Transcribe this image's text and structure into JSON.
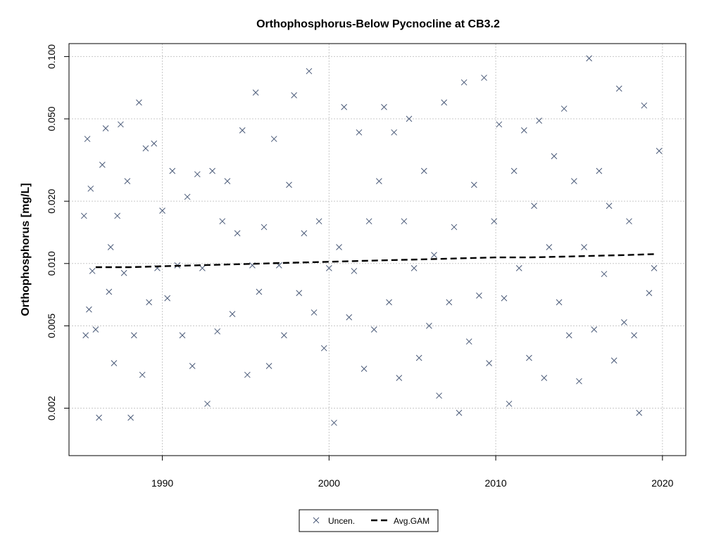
{
  "chart_data": {
    "type": "scatter",
    "title": "Orthophosphorus-Below Pycnocline at CB3.2",
    "xlabel": "",
    "ylabel": "Orthophosphorus [mg/L]",
    "xlim": [
      1984.4,
      2021.4
    ],
    "ylim": [
      0.00118,
      0.1155
    ],
    "y_scale": "log",
    "grid": true,
    "legend_position": "bottom-center",
    "x_ticks": [
      1990,
      2000,
      2010,
      2020
    ],
    "y_ticks": [
      0.002,
      0.005,
      0.01,
      0.02,
      0.05,
      0.1
    ],
    "x_tick_labels": [
      "1990",
      "2000",
      "2010",
      "2020"
    ],
    "y_tick_labels": [
      "0.002",
      "0.005",
      "0.010",
      "0.020",
      "0.050",
      "0.100"
    ],
    "colors": {
      "points": "#4a5a78",
      "gam": "#000000",
      "grid": "#c8c8c8"
    },
    "series": [
      {
        "name": "Uncen.",
        "marker": "x",
        "x": [
          1985.3,
          1985.4,
          1985.5,
          1985.6,
          1985.7,
          1985.8,
          1986.0,
          1986.2,
          1986.4,
          1986.6,
          1986.8,
          1986.9,
          1987.1,
          1987.3,
          1987.5,
          1987.7,
          1987.9,
          1988.1,
          1988.3,
          1988.6,
          1988.8,
          1989.0,
          1989.2,
          1989.5,
          1989.7,
          1990.0,
          1990.3,
          1990.6,
          1990.9,
          1991.2,
          1991.5,
          1991.8,
          1992.1,
          1992.4,
          1992.7,
          1993.0,
          1993.3,
          1993.6,
          1993.9,
          1994.2,
          1994.5,
          1994.8,
          1995.1,
          1995.4,
          1995.6,
          1995.8,
          1996.1,
          1996.4,
          1996.7,
          1997.0,
          1997.3,
          1997.6,
          1997.9,
          1998.2,
          1998.5,
          1998.8,
          1999.1,
          1999.4,
          1999.7,
          2000.0,
          2000.3,
          2000.6,
          2000.9,
          2001.2,
          2001.5,
          2001.8,
          2002.1,
          2002.4,
          2002.7,
          2003.0,
          2003.3,
          2003.6,
          2003.9,
          2004.2,
          2004.5,
          2004.8,
          2005.1,
          2005.4,
          2005.7,
          2006.0,
          2006.3,
          2006.6,
          2006.9,
          2007.2,
          2007.5,
          2007.8,
          2008.1,
          2008.4,
          2008.7,
          2009.0,
          2009.3,
          2009.6,
          2009.9,
          2010.2,
          2010.5,
          2010.8,
          2011.1,
          2011.4,
          2011.7,
          2012.0,
          2012.3,
          2012.6,
          2012.9,
          2013.2,
          2013.5,
          2013.8,
          2014.1,
          2014.4,
          2014.7,
          2015.0,
          2015.3,
          2015.6,
          2015.9,
          2016.2,
          2016.5,
          2016.8,
          2017.1,
          2017.4,
          2017.7,
          2018.0,
          2018.3,
          2018.6,
          2018.9,
          2019.2,
          2019.5,
          2019.8
        ],
        "y": [
          0.017,
          0.0045,
          0.04,
          0.006,
          0.023,
          0.0092,
          0.0048,
          0.0018,
          0.03,
          0.045,
          0.0073,
          0.012,
          0.0033,
          0.017,
          0.047,
          0.009,
          0.025,
          0.0018,
          0.0045,
          0.06,
          0.0029,
          0.036,
          0.0065,
          0.038,
          0.0095,
          0.018,
          0.0068,
          0.028,
          0.0098,
          0.0045,
          0.021,
          0.0032,
          0.027,
          0.0095,
          0.0021,
          0.028,
          0.0047,
          0.016,
          0.025,
          0.0057,
          0.014,
          0.044,
          0.0029,
          0.0098,
          0.067,
          0.0073,
          0.015,
          0.0032,
          0.04,
          0.0098,
          0.0045,
          0.024,
          0.065,
          0.0072,
          0.014,
          0.085,
          0.0058,
          0.016,
          0.0039,
          0.0095,
          0.0017,
          0.012,
          0.057,
          0.0055,
          0.0092,
          0.043,
          0.0031,
          0.016,
          0.0048,
          0.025,
          0.057,
          0.0065,
          0.043,
          0.0028,
          0.016,
          0.05,
          0.0095,
          0.0035,
          0.028,
          0.005,
          0.011,
          0.0023,
          0.06,
          0.0065,
          0.015,
          0.0019,
          0.075,
          0.0042,
          0.024,
          0.007,
          0.079,
          0.0033,
          0.016,
          0.047,
          0.0068,
          0.0021,
          0.028,
          0.0095,
          0.044,
          0.0035,
          0.019,
          0.049,
          0.0028,
          0.012,
          0.033,
          0.0065,
          0.056,
          0.0045,
          0.025,
          0.0027,
          0.012,
          0.098,
          0.0048,
          0.028,
          0.0089,
          0.019,
          0.0034,
          0.07,
          0.0052,
          0.016,
          0.0045,
          0.0019,
          0.058,
          0.0072,
          0.0095,
          0.035
        ]
      },
      {
        "name": "Avg.GAM",
        "line": "dashed",
        "x": [
          1986.0,
          1988.0,
          1990.0,
          1992.0,
          1994.0,
          1996.0,
          1998.0,
          2000.0,
          2002.0,
          2004.0,
          2006.0,
          2008.0,
          2010.0,
          2012.0,
          2014.0,
          2016.0,
          2018.0,
          2019.5
        ],
        "y": [
          0.0096,
          0.0096,
          0.0097,
          0.0098,
          0.0099,
          0.01,
          0.0101,
          0.0102,
          0.0103,
          0.0104,
          0.0105,
          0.0106,
          0.0107,
          0.0107,
          0.0108,
          0.0109,
          0.011,
          0.0111
        ]
      }
    ]
  }
}
